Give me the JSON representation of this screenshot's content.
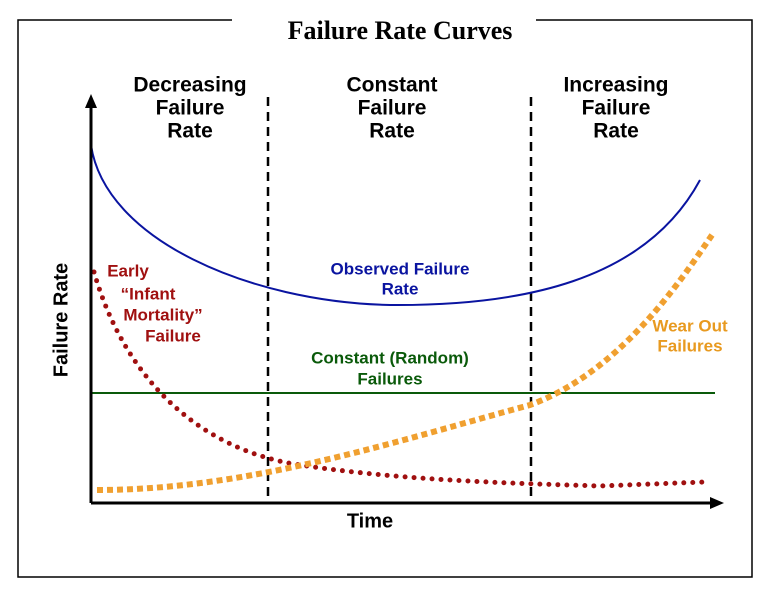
{
  "title": "Failure Rate Curves",
  "regions": [
    {
      "label": [
        "Decreasing",
        "Failure",
        "Rate"
      ]
    },
    {
      "label": [
        "Constant",
        "Failure",
        "Rate"
      ]
    },
    {
      "label": [
        "Increasing",
        "Failure",
        "Rate"
      ]
    }
  ],
  "axes": {
    "y_label": "Failure Rate",
    "x_label": "Time"
  },
  "curves": [
    {
      "label": [
        "Observed Failure",
        "Rate"
      ]
    },
    {
      "label": [
        "Constant (Random)",
        "Failures"
      ]
    },
    {
      "label": [
        "Early",
        "“Infant",
        "Mortality”",
        "Failure"
      ]
    },
    {
      "label": [
        "Wear Out",
        "Failures"
      ]
    }
  ]
}
